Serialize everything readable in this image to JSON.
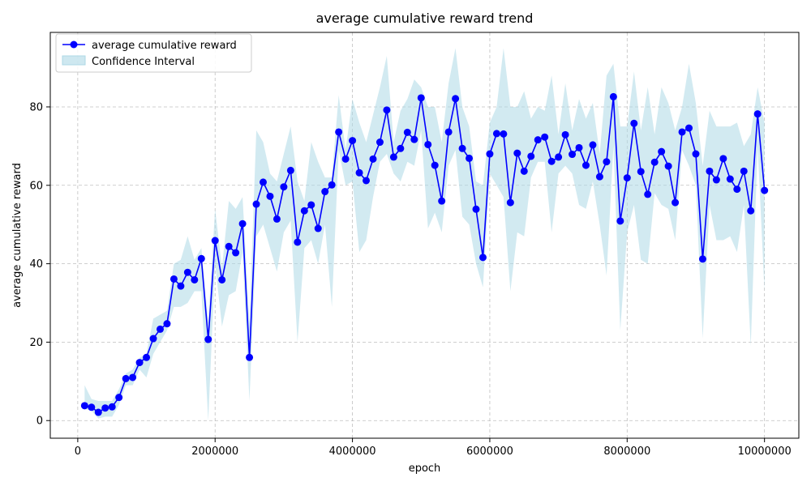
{
  "chart_data": {
    "type": "line",
    "title": "average cumulative reward trend",
    "xlabel": "epoch",
    "ylabel": "average cumulative reward",
    "xlim": [
      -400000,
      10500000
    ],
    "ylim": [
      -4.5,
      99
    ],
    "x_ticks": [
      0,
      2000000,
      4000000,
      6000000,
      8000000,
      10000000
    ],
    "x_tick_labels": [
      "0",
      "2000000",
      "4000000",
      "6000000",
      "8000000",
      "10000000"
    ],
    "y_ticks": [
      0,
      20,
      40,
      60,
      80
    ],
    "y_tick_labels": [
      "0",
      "20",
      "40",
      "60",
      "80"
    ],
    "grid": true,
    "legend_position": "upper-left",
    "colors": {
      "line": "#0000ff",
      "band": "#add8e6",
      "grid": "#b0b0b0"
    },
    "series": [
      {
        "name": "average cumulative reward",
        "style": "line-with-circle-markers",
        "x": [
          100000,
          200000,
          300000,
          400000,
          500000,
          600000,
          700000,
          800000,
          900000,
          1000000,
          1100000,
          1200000,
          1300000,
          1400000,
          1500000,
          1600000,
          1700000,
          1800000,
          1900000,
          2000000,
          2100000,
          2200000,
          2300000,
          2400000,
          2500000,
          2600000,
          2700000,
          2800000,
          2900000,
          3000000,
          3100000,
          3200000,
          3300000,
          3400000,
          3500000,
          3600000,
          3700000,
          3800000,
          3900000,
          4000000,
          4100000,
          4200000,
          4300000,
          4400000,
          4500000,
          4600000,
          4700000,
          4800000,
          4900000,
          5000000,
          5100000,
          5200000,
          5300000,
          5400000,
          5500000,
          5600000,
          5700000,
          5800000,
          5900000,
          6000000,
          6100000,
          6200000,
          6300000,
          6400000,
          6500000,
          6600000,
          6700000,
          6800000,
          6900000,
          7000000,
          7100000,
          7200000,
          7300000,
          7400000,
          7500000,
          7600000,
          7700000,
          7800000,
          7900000,
          8000000,
          8100000,
          8200000,
          8300000,
          8400000,
          8500000,
          8600000,
          8700000,
          8800000,
          8900000,
          9000000,
          9100000,
          9200000,
          9300000,
          9400000,
          9500000,
          9600000,
          9700000,
          9800000,
          9900000,
          10000000
        ],
        "y": [
          3.8,
          3.4,
          2.1,
          3.2,
          3.5,
          5.9,
          10.7,
          11.0,
          14.8,
          16.1,
          20.9,
          23.3,
          24.7,
          36.1,
          34.3,
          37.8,
          35.9,
          41.3,
          20.7,
          45.9,
          35.9,
          44.4,
          42.8,
          50.2,
          16.1,
          55.2,
          60.8,
          57.2,
          51.4,
          59.6,
          63.8,
          45.5,
          53.5,
          55.0,
          49.0,
          58.4,
          60.1,
          73.6,
          66.7,
          71.4,
          63.2,
          61.2,
          66.7,
          71.0,
          79.2,
          67.2,
          69.4,
          73.5,
          71.7,
          82.3,
          70.4,
          65.1,
          56.0,
          73.6,
          82.1,
          69.4,
          66.9,
          53.9,
          41.6,
          68.0,
          73.2,
          73.1,
          55.6,
          68.2,
          63.6,
          67.4,
          71.6,
          72.3,
          66.1,
          67.2,
          72.9,
          67.9,
          69.6,
          65.1,
          70.3,
          62.2,
          66.0,
          82.6,
          50.9,
          61.9,
          75.8,
          63.5,
          57.7,
          65.9,
          68.6,
          64.9,
          55.6,
          73.6,
          74.6,
          68.0,
          41.2,
          63.6,
          61.4,
          66.8,
          61.6,
          59.0,
          63.6,
          53.5,
          78.2,
          58.7
        ]
      },
      {
        "name": "Confidence Interval",
        "style": "shaded-band",
        "upper": [
          9,
          5.5,
          5,
          5,
          5,
          8,
          12,
          13,
          16,
          17,
          26,
          27,
          28,
          40,
          41,
          47,
          41,
          44,
          25,
          54,
          39,
          56,
          54,
          57,
          25,
          74,
          71,
          63,
          61,
          68,
          75,
          61,
          56,
          71,
          66,
          62,
          62,
          83,
          69,
          82,
          76,
          71,
          78,
          85,
          93,
          71,
          79,
          82,
          87,
          85,
          80,
          80,
          71,
          86,
          95,
          80,
          75,
          61,
          60,
          76,
          80,
          95,
          80,
          80,
          84,
          77,
          80,
          79,
          88,
          73,
          86,
          74,
          82,
          77,
          81,
          68,
          88,
          91,
          75,
          75,
          89,
          74,
          85,
          73,
          85,
          81,
          74,
          80,
          91,
          81,
          65,
          79,
          75,
          75,
          75,
          76,
          70,
          73,
          85,
          76
        ],
        "lower": [
          3,
          2.5,
          0.5,
          1,
          1,
          4,
          9,
          9,
          13,
          11,
          17,
          20,
          23,
          29,
          29,
          30,
          33,
          33,
          0,
          40,
          24,
          32,
          33,
          43,
          5,
          47,
          50,
          44,
          38,
          48,
          51,
          20,
          44,
          46,
          40,
          50,
          29,
          69,
          60,
          61,
          43,
          46,
          57,
          66,
          68,
          63,
          61,
          66,
          65,
          74,
          49,
          53,
          48,
          65,
          69,
          52,
          50,
          40,
          34,
          63,
          60,
          57,
          33,
          48,
          47,
          62,
          66,
          66,
          48,
          63,
          65,
          63,
          55,
          54,
          61,
          50,
          37,
          70,
          23,
          48,
          55,
          41,
          40,
          58,
          55,
          54,
          46,
          69,
          65,
          60,
          21,
          55,
          46,
          46,
          47,
          43,
          55,
          19,
          70,
          33
        ]
      }
    ]
  }
}
